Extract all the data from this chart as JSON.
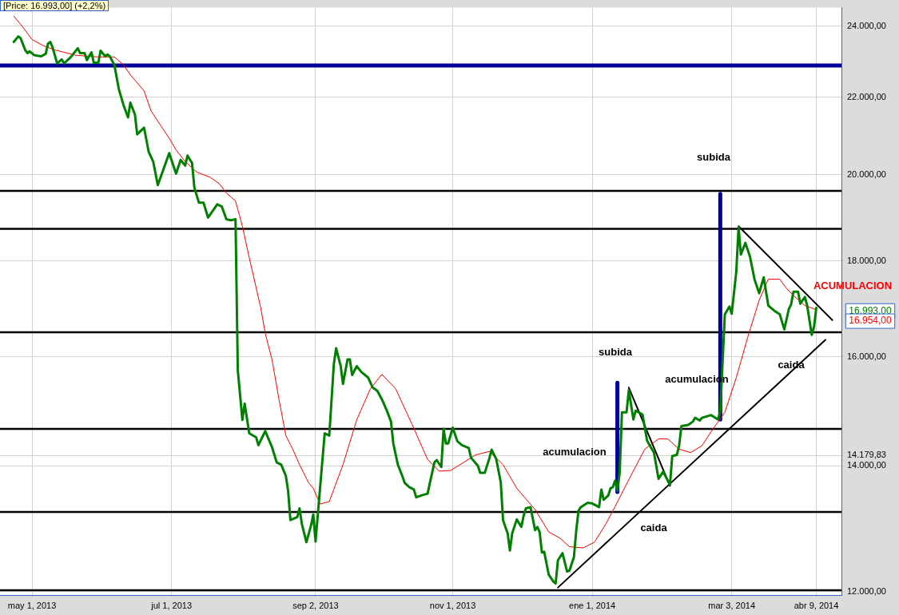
{
  "chart_data": {
    "type": "line",
    "title": "[Price: 16.993,00] (+2,2%)",
    "log": "y",
    "grid": true,
    "legend": false,
    "marker": "none",
    "line_style": "solid",
    "xlim": [
      "2013-04-17",
      "2014-04-20"
    ],
    "xticks": [
      {
        "value": "2013-05-01",
        "label": "may 1, 2013"
      },
      {
        "value": "2013-07-01",
        "label": "jul 1, 2013"
      },
      {
        "value": "2013-09-02",
        "label": "sep 2, 2013"
      },
      {
        "value": "2013-11-01",
        "label": "nov 1, 2013"
      },
      {
        "value": "2014-01-01",
        "label": "ene 1, 2014"
      },
      {
        "value": "2014-03-03",
        "label": "mar 3, 2014"
      },
      {
        "value": "2014-04-09",
        "label": "abr 9, 2014"
      }
    ],
    "ylim": [
      11950,
      24550
    ],
    "yticks": [
      {
        "value": 12000,
        "label": "12.000,00"
      },
      {
        "value": 14000,
        "label": "14.000,00"
      },
      {
        "value": 14179.83,
        "label": "14.179,83"
      },
      {
        "value": 16000,
        "label": "16.000,00"
      },
      {
        "value": 18000,
        "label": "18.000,00"
      },
      {
        "value": 20000,
        "label": "20.000,00"
      },
      {
        "value": 22000,
        "label": "22.000,00"
      },
      {
        "value": 24000,
        "label": "24.000,00"
      }
    ],
    "ref_lines": [
      {
        "axis": "y",
        "value": 22870,
        "color": "#000099"
      },
      {
        "axis": "y",
        "value": 19610,
        "color": "#000000"
      },
      {
        "axis": "y",
        "value": 18720,
        "color": "#000000"
      },
      {
        "axis": "y",
        "value": 16490,
        "color": "#000000"
      },
      {
        "axis": "y",
        "value": 14650,
        "color": "#000000"
      },
      {
        "axis": "y",
        "value": 13230,
        "color": "#000000"
      },
      {
        "axis": "y",
        "value": 12020,
        "color": "#000000"
      }
    ],
    "annotations": [
      "subida",
      "subida",
      "acumulacion",
      "acumulacion",
      "caida",
      "caida",
      "ACUMULACION",
      "16.993,00",
      "16.954,00"
    ],
    "series": [
      {
        "type": "line",
        "color": "#008000",
        "x": [
          "2013-04-23",
          "2013-04-25",
          "2013-04-26",
          "2013-04-28",
          "2013-04-29",
          "2013-04-30",
          "2013-05-02",
          "2013-05-05",
          "2013-05-07",
          "2013-05-08",
          "2013-05-09",
          "2013-05-10",
          "2013-05-12",
          "2013-05-14",
          "2013-05-15",
          "2013-05-18",
          "2013-05-21",
          "2013-05-22",
          "2013-05-24",
          "2013-05-25",
          "2013-05-27",
          "2013-05-28",
          "2013-05-30",
          "2013-05-31",
          "2013-06-02",
          "2013-06-03",
          "2013-06-04",
          "2013-06-06",
          "2013-06-08",
          "2013-06-10",
          "2013-06-12",
          "2013-06-13",
          "2013-06-15",
          "2013-06-16",
          "2013-06-19",
          "2013-06-21",
          "2013-06-23",
          "2013-06-25",
          "2013-06-30",
          "2013-07-03",
          "2013-07-05",
          "2013-07-07",
          "2013-07-08",
          "2013-07-10",
          "2013-07-11",
          "2013-07-13",
          "2013-07-15",
          "2013-07-17",
          "2013-07-21",
          "2013-07-23",
          "2013-07-25",
          "2013-07-27",
          "2013-07-29",
          "2013-07-30",
          "2013-08-01",
          "2013-08-02",
          "2013-08-04",
          "2013-08-07",
          "2013-08-08",
          "2013-08-11",
          "2013-08-14",
          "2013-08-16",
          "2013-08-18",
          "2013-08-20",
          "2013-08-21",
          "2013-08-22",
          "2013-08-25",
          "2013-08-26",
          "2013-08-27",
          "2013-08-29",
          "2013-08-31",
          "2013-09-01",
          "2013-09-02",
          "2013-09-04",
          "2013-09-06",
          "2013-09-08",
          "2013-09-10",
          "2013-09-11",
          "2013-09-13",
          "2013-09-14",
          "2013-09-16",
          "2013-09-17",
          "2013-09-18",
          "2013-09-20",
          "2013-09-22",
          "2013-09-25",
          "2013-09-27",
          "2013-09-29",
          "2013-10-01",
          "2013-10-03",
          "2013-10-05",
          "2013-10-06",
          "2013-10-08",
          "2013-10-10",
          "2013-10-11",
          "2013-10-13",
          "2013-10-15",
          "2013-10-16",
          "2013-10-19",
          "2013-10-21",
          "2013-10-22",
          "2013-10-24",
          "2013-10-25",
          "2013-10-27",
          "2013-10-28",
          "2013-10-29",
          "2013-10-30",
          "2013-11-01",
          "2013-11-03",
          "2013-11-05",
          "2013-11-08",
          "2013-11-09",
          "2013-11-12",
          "2013-11-13",
          "2013-11-15",
          "2013-11-17",
          "2013-11-18",
          "2013-11-20",
          "2013-11-22",
          "2013-11-23",
          "2013-11-25",
          "2013-11-26",
          "2013-11-27",
          "2013-11-29",
          "2013-12-01",
          "2013-12-02",
          "2013-12-03",
          "2013-12-05",
          "2013-12-07",
          "2013-12-08",
          "2013-12-09",
          "2013-12-10",
          "2013-12-11",
          "2013-12-13",
          "2013-12-15",
          "2013-12-16",
          "2013-12-17",
          "2013-12-19",
          "2013-12-21",
          "2013-12-22",
          "2013-12-24",
          "2013-12-25",
          "2013-12-26",
          "2013-12-27",
          "2013-12-30",
          "2014-01-01",
          "2014-01-03",
          "2014-01-04",
          "2014-01-05",
          "2014-01-06",
          "2014-01-08",
          "2014-01-09",
          "2014-01-10",
          "2014-01-11",
          "2014-01-12",
          "2014-01-13",
          "2014-01-14",
          "2014-01-16",
          "2014-01-17",
          "2014-01-19",
          "2014-01-20",
          "2014-01-23",
          "2014-01-25",
          "2014-01-28",
          "2014-01-30",
          "2014-02-01",
          "2014-02-04",
          "2014-02-05",
          "2014-02-07",
          "2014-02-08",
          "2014-02-09",
          "2014-02-12",
          "2014-02-14",
          "2014-02-15",
          "2014-02-17",
          "2014-02-18",
          "2014-02-22",
          "2014-02-25",
          "2014-02-26",
          "2014-02-28",
          "2014-03-02",
          "2014-03-03",
          "2014-03-05",
          "2014-03-06",
          "2014-03-07",
          "2014-03-09",
          "2014-03-11",
          "2014-03-13",
          "2014-03-15",
          "2014-03-17",
          "2014-03-19",
          "2014-03-22",
          "2014-03-24",
          "2014-03-26",
          "2014-03-28",
          "2014-03-29",
          "2014-03-30",
          "2014-04-01",
          "2014-04-02",
          "2014-04-04",
          "2014-04-05",
          "2014-04-07",
          "2014-04-08",
          "2014-04-09"
        ],
        "values": [
          23540,
          23700,
          23650,
          23310,
          23220,
          23270,
          23160,
          23130,
          23200,
          23490,
          23540,
          23380,
          22930,
          23040,
          22930,
          23110,
          23360,
          23220,
          23220,
          23020,
          23240,
          22950,
          22950,
          23290,
          23130,
          23180,
          23130,
          22890,
          22210,
          21790,
          21460,
          21850,
          21540,
          21020,
          21190,
          20580,
          20330,
          19750,
          20540,
          20030,
          20370,
          20230,
          20480,
          20290,
          19690,
          19330,
          19330,
          18980,
          19290,
          19240,
          18940,
          18920,
          18940,
          15740,
          14810,
          15110,
          14570,
          14500,
          14360,
          14610,
          14320,
          14060,
          14020,
          13830,
          13580,
          13100,
          13150,
          13290,
          13040,
          12750,
          13010,
          13190,
          12760,
          13640,
          14570,
          14530,
          15860,
          16170,
          15820,
          15480,
          15950,
          15950,
          15650,
          15820,
          15710,
          15600,
          15410,
          15350,
          15190,
          15000,
          14780,
          14390,
          14020,
          13820,
          13710,
          13640,
          13600,
          13470,
          13510,
          13530,
          13710,
          14060,
          14100,
          13980,
          14650,
          14390,
          14390,
          14670,
          14430,
          14360,
          14310,
          14140,
          14000,
          13880,
          13880,
          14130,
          14280,
          14120,
          13720,
          13100,
          12890,
          12620,
          12890,
          13110,
          12990,
          13170,
          13290,
          13310,
          12940,
          12990,
          12910,
          12590,
          12600,
          12250,
          12150,
          12120,
          12470,
          12580,
          12300,
          12310,
          12520,
          12930,
          13250,
          13310,
          13380,
          13370,
          13330,
          13310,
          13600,
          13430,
          13500,
          13620,
          13640,
          13750,
          13580,
          13880,
          14950,
          14950,
          15360,
          14820,
          14980,
          14910,
          14440,
          14230,
          13780,
          13900,
          13680,
          14170,
          14190,
          14350,
          14700,
          14720,
          14780,
          14850,
          14800,
          14850,
          14900,
          14820,
          14970,
          16860,
          17020,
          16870,
          17760,
          18760,
          18140,
          18400,
          18090,
          17590,
          17300,
          17640,
          17040,
          16920,
          16860,
          16550,
          16970,
          17070,
          17330,
          17330,
          17080,
          17220,
          17040,
          16440,
          16600,
          16993
        ]
      },
      {
        "type": "line",
        "color": "#ff0000",
        "x": [
          "2013-04-23",
          "2013-04-27",
          "2013-05-01",
          "2013-05-06",
          "2013-05-11",
          "2013-05-20",
          "2013-05-30",
          "2013-06-06",
          "2013-06-10",
          "2013-06-13",
          "2013-06-19",
          "2013-06-22",
          "2013-06-26",
          "2013-06-30",
          "2013-07-03",
          "2013-07-07",
          "2013-07-12",
          "2013-07-18",
          "2013-07-22",
          "2013-07-25",
          "2013-07-29",
          "2013-08-01",
          "2013-08-04",
          "2013-08-09",
          "2013-08-11",
          "2013-08-14",
          "2013-08-17",
          "2013-08-20",
          "2013-08-23",
          "2013-08-26",
          "2013-08-30",
          "2013-09-01",
          "2013-09-04",
          "2013-09-08",
          "2013-09-14",
          "2013-09-20",
          "2013-09-26",
          "2013-10-01",
          "2013-10-07",
          "2013-10-14",
          "2013-10-21",
          "2013-10-26",
          "2013-10-31",
          "2013-11-05",
          "2013-11-11",
          "2013-11-17",
          "2013-11-23",
          "2013-11-29",
          "2013-12-07",
          "2013-12-13",
          "2013-12-18",
          "2013-12-22",
          "2013-12-28",
          "2014-01-02",
          "2014-01-07",
          "2014-01-11",
          "2014-01-18",
          "2014-01-24",
          "2014-01-30",
          "2014-02-03",
          "2014-02-08",
          "2014-02-13",
          "2014-02-18",
          "2014-02-22",
          "2014-02-28",
          "2014-03-05",
          "2014-03-10",
          "2014-03-15",
          "2014-03-19",
          "2014-03-24",
          "2014-03-27",
          "2014-03-30",
          "2014-04-04",
          "2014-04-09"
        ],
        "values": [
          24300,
          23970,
          23610,
          23430,
          23310,
          23160,
          23110,
          23110,
          22890,
          22610,
          22170,
          21640,
          21270,
          20920,
          20620,
          20330,
          20070,
          19940,
          19780,
          19560,
          19370,
          18780,
          18070,
          17000,
          16470,
          15940,
          15190,
          14530,
          14290,
          14020,
          13710,
          13620,
          13360,
          13400,
          14020,
          14810,
          15390,
          15660,
          15390,
          14750,
          14110,
          13910,
          13920,
          14040,
          14190,
          14250,
          14020,
          13620,
          13270,
          12910,
          12810,
          12680,
          12660,
          12750,
          13040,
          13320,
          13840,
          14290,
          14470,
          14470,
          14290,
          14230,
          14350,
          14600,
          14950,
          15600,
          16390,
          17150,
          17600,
          17600,
          17400,
          17250,
          17040,
          16954
        ]
      },
      {
        "type": "line",
        "color": "#000099",
        "x": [
          "2014-01-12",
          "2014-01-12"
        ],
        "values": [
          15500,
          13560
        ]
      },
      {
        "type": "line",
        "color": "#000099",
        "x": [
          "2014-02-26",
          "2014-02-26"
        ],
        "values": [
          19540,
          14820
        ]
      },
      {
        "type": "line",
        "color": "#000000",
        "x": [
          "2013-12-17",
          "2014-04-13"
        ],
        "values": [
          12060,
          16340
        ]
      },
      {
        "type": "line",
        "color": "#000000",
        "x": [
          "2014-01-17",
          "2014-02-04"
        ],
        "values": [
          15410,
          13660
        ]
      },
      {
        "type": "line",
        "color": "#000000",
        "x": [
          "2014-03-06",
          "2014-04-16"
        ],
        "values": [
          18780,
          16740
        ]
      }
    ]
  }
}
